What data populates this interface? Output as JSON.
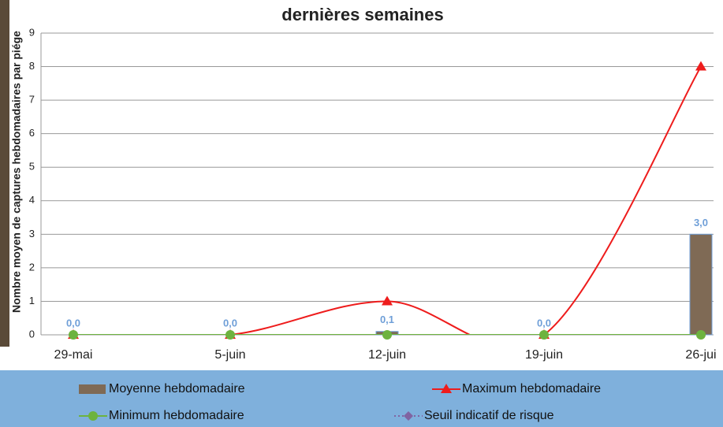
{
  "chart_data": {
    "type": "combo",
    "title": "dernières semaines",
    "y_label": "Nombre moyen de captures hebdomadaires par piége",
    "categories": [
      "29-mai",
      "5-juin",
      "12-juin",
      "19-juin",
      "26-jui"
    ],
    "ylim": [
      0,
      9
    ],
    "yticks": [
      0,
      1,
      2,
      3,
      4,
      5,
      6,
      7,
      8,
      9
    ],
    "grid": true,
    "series": [
      {
        "name": "Moyenne hebdomadaire",
        "type": "bar",
        "color": "#7f6a55",
        "values": [
          0,
          0,
          0.1,
          0,
          3
        ],
        "value_labels": [
          "0,0",
          "0,0",
          "0,1",
          "0,0",
          "3,0"
        ]
      },
      {
        "name": "Maximum hebdomadaire",
        "type": "line",
        "marker": "triangle",
        "color": "#ee1c1c",
        "values": [
          0,
          0,
          1,
          0,
          8
        ]
      },
      {
        "name": "Minimum hebdomadaire",
        "type": "line",
        "marker": "circle",
        "color": "#6db33f",
        "values": [
          0,
          0,
          0,
          0,
          0
        ]
      },
      {
        "name": "Seuil indicatif de risque",
        "type": "line",
        "marker": "diamond",
        "color": "#8064a2",
        "values": [
          null,
          null,
          null,
          null,
          null
        ]
      }
    ]
  }
}
